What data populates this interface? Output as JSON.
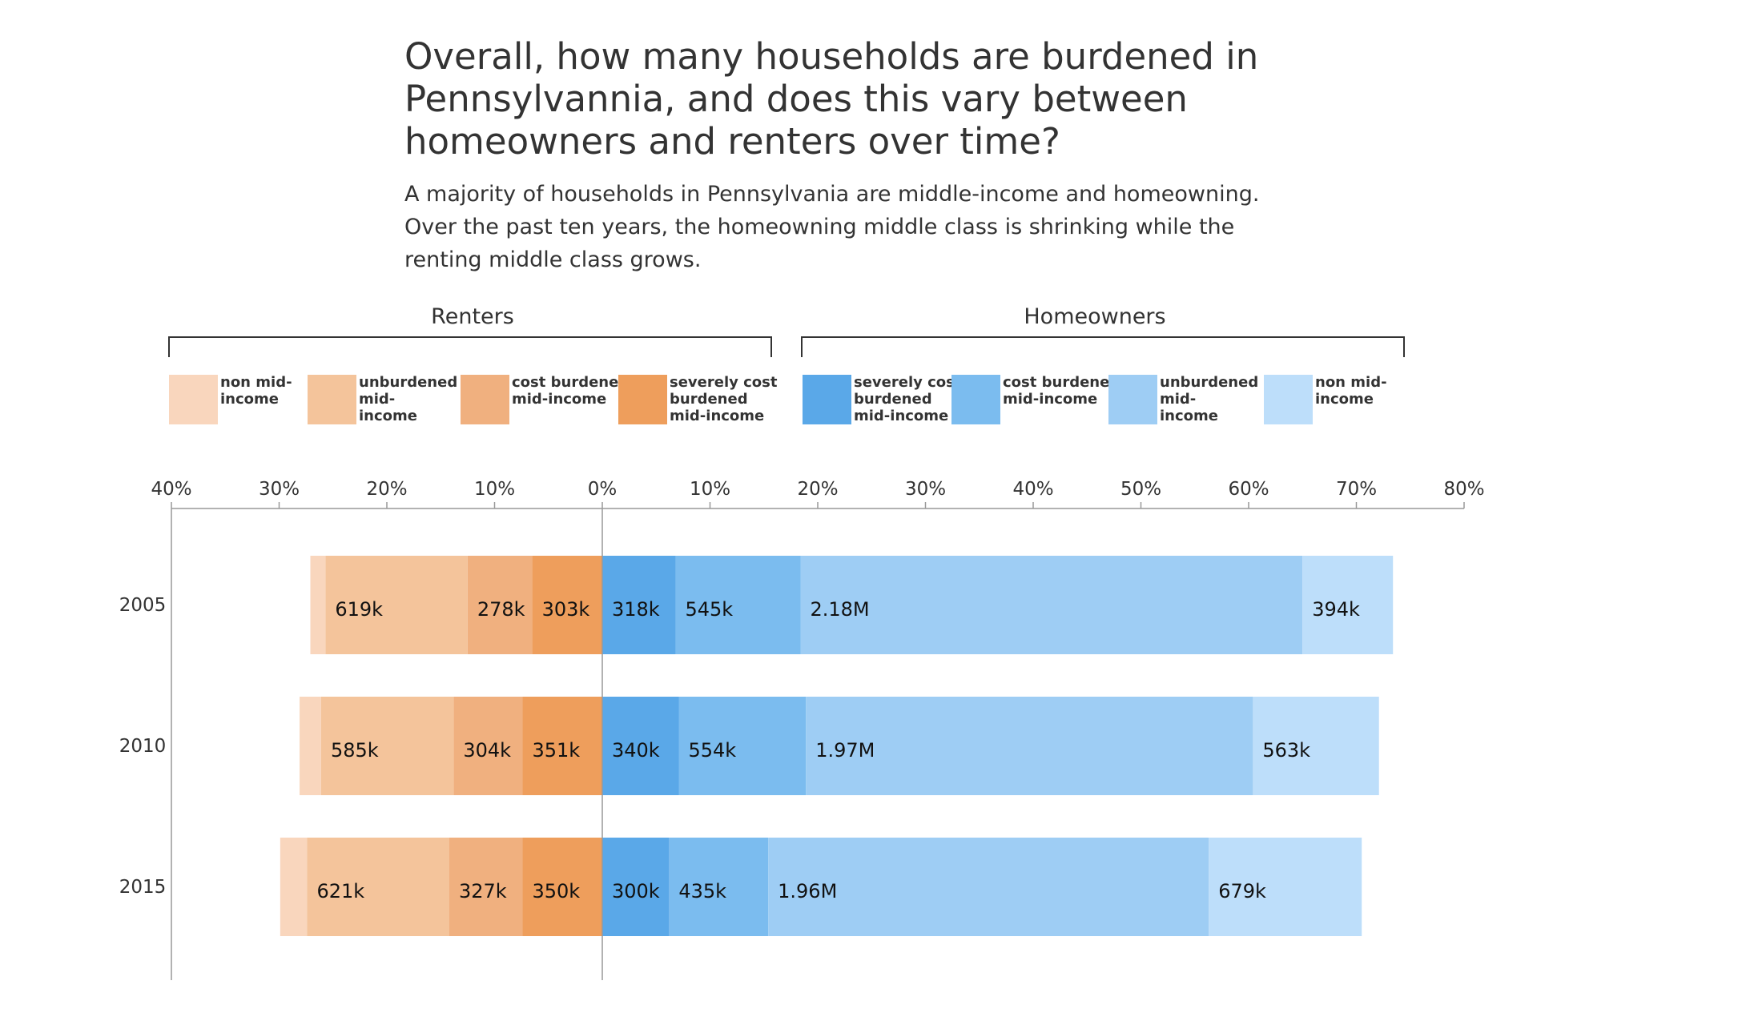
{
  "header": {
    "title": "Overall, how many households are burdened in Pennsylvannia, and does this vary between homeowners and renters over time?",
    "subtitle": "A majority of households in Pennsylvania are middle-income and homeowning. Over the past ten years, the homeowning middle class is shrinking while the renting middle class grows."
  },
  "groups": {
    "renters_label": "Renters",
    "homeowners_label": "Homeowners"
  },
  "legend": {
    "renters": [
      {
        "key": "r_non",
        "lines": [
          "non mid-",
          "income"
        ],
        "color": "#f9d6bd"
      },
      {
        "key": "r_unb",
        "lines": [
          "unburdened",
          "mid-",
          "income"
        ],
        "color": "#f4c49b"
      },
      {
        "key": "r_cb",
        "lines": [
          "cost burdened",
          "mid-income"
        ],
        "color": "#f0b07f"
      },
      {
        "key": "r_sev",
        "lines": [
          "severely  cost",
          "burdened",
          "mid-income"
        ],
        "color": "#ee9e5c"
      }
    ],
    "homeowners": [
      {
        "key": "h_sev",
        "lines": [
          "severely cost",
          "burdened",
          "mid-income"
        ],
        "color": "#5aa8e8"
      },
      {
        "key": "h_cb",
        "lines": [
          "cost burdened",
          "mid-income"
        ],
        "color": "#7bbcef"
      },
      {
        "key": "h_unb",
        "lines": [
          "unburdened",
          "mid-",
          "income"
        ],
        "color": "#9ecdf4"
      },
      {
        "key": "h_non",
        "lines": [
          "non mid-",
          "income"
        ],
        "color": "#bddefa"
      }
    ]
  },
  "chart_data": {
    "type": "bar",
    "orientation": "horizontal-diverging",
    "title": "",
    "xlabel": "",
    "ylabel": "",
    "xlim": [
      -40,
      80
    ],
    "xticks": [
      -40,
      -30,
      -20,
      -10,
      0,
      10,
      20,
      30,
      40,
      50,
      60,
      70,
      80
    ],
    "xtick_labels": [
      "40%",
      "30%",
      "20%",
      "10%",
      "0%",
      "10%",
      "20%",
      "30%",
      "40%",
      "50%",
      "60%",
      "70%",
      "80%"
    ],
    "categories": [
      "2005",
      "2010",
      "2015"
    ],
    "units": "percent of households",
    "series": [
      {
        "name": "severely  cost burdened mid-income",
        "side": "renters",
        "color": "#ee9e5c",
        "values": [
          6.5,
          7.4,
          7.4
        ],
        "labels": [
          "303k",
          "351k",
          "350k"
        ]
      },
      {
        "name": "cost burdened mid-income",
        "side": "renters",
        "color": "#f0b07f",
        "values": [
          6.0,
          6.4,
          6.8
        ],
        "labels": [
          "278k",
          "304k",
          "327k"
        ]
      },
      {
        "name": "unburdened mid-income",
        "side": "renters",
        "color": "#f4c49b",
        "values": [
          13.2,
          12.3,
          13.2
        ],
        "labels": [
          "619k",
          "585k",
          "621k"
        ]
      },
      {
        "name": "non mid-income",
        "side": "renters",
        "color": "#f9d6bd",
        "values": [
          1.4,
          2.0,
          2.5
        ],
        "labels": [
          "",
          "",
          ""
        ]
      },
      {
        "name": "severely cost burdened mid-income",
        "side": "homeowners",
        "color": "#5aa8e8",
        "values": [
          6.8,
          7.1,
          6.2
        ],
        "labels": [
          "318k",
          "340k",
          "300k"
        ]
      },
      {
        "name": "cost burdened mid-income",
        "side": "homeowners",
        "color": "#7bbcef",
        "values": [
          11.6,
          11.8,
          9.2
        ],
        "labels": [
          "545k",
          "554k",
          "435k"
        ]
      },
      {
        "name": "unburdened mid-income",
        "side": "homeowners",
        "color": "#9ecdf4",
        "values": [
          46.6,
          41.5,
          40.9
        ],
        "labels": [
          "2.18M",
          "1.97M",
          "1.96M"
        ]
      },
      {
        "name": "non mid-income",
        "side": "homeowners",
        "color": "#bddefa",
        "values": [
          8.4,
          11.7,
          14.2
        ],
        "labels": [
          "394k",
          "563k",
          "679k"
        ]
      }
    ],
    "legend_position": "top",
    "grid": false
  }
}
